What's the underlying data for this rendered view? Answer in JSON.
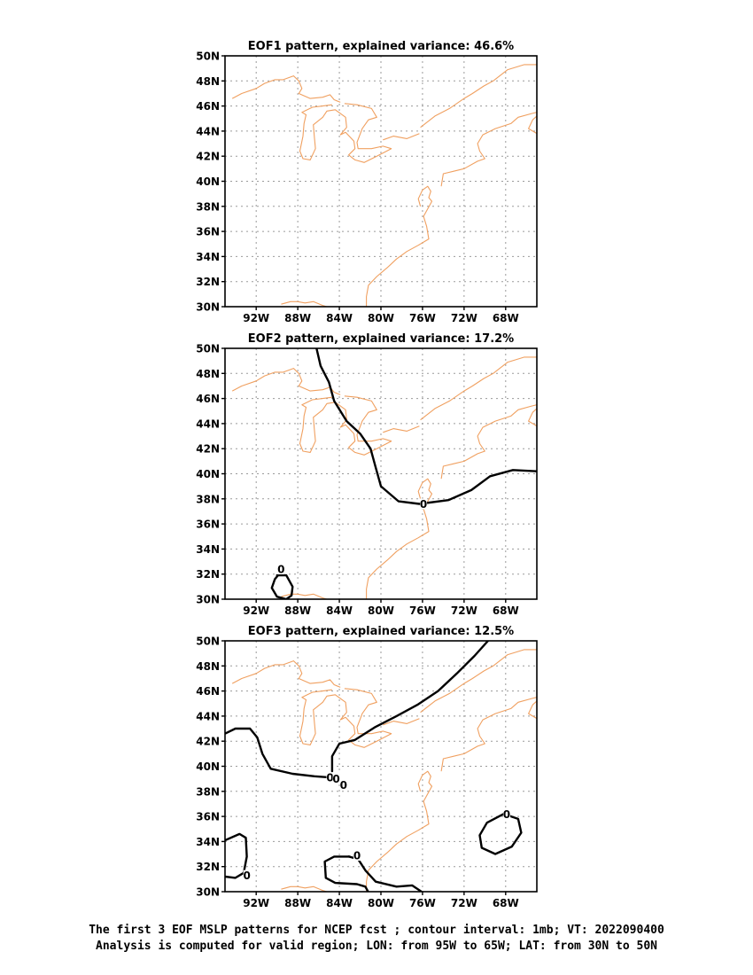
{
  "colors": {
    "coast": "#f0a060",
    "contour": "#000000",
    "grid": "#9a9a9a",
    "frame": "#000000"
  },
  "map": {
    "projection": "lat-lon",
    "lon_range": [
      -95,
      -65
    ],
    "lat_range": [
      30,
      50
    ],
    "grid": "dotted",
    "lon_ticks": [
      {
        "value": -92,
        "label": "92W"
      },
      {
        "value": -88,
        "label": "88W"
      },
      {
        "value": -84,
        "label": "84W"
      },
      {
        "value": -80,
        "label": "80W"
      },
      {
        "value": -76,
        "label": "76W"
      },
      {
        "value": -72,
        "label": "72W"
      },
      {
        "value": -68,
        "label": "68W"
      }
    ],
    "lat_ticks": [
      {
        "value": 50,
        "label": "50N"
      },
      {
        "value": 48,
        "label": "48N"
      },
      {
        "value": 46,
        "label": "46N"
      },
      {
        "value": 44,
        "label": "44N"
      },
      {
        "value": 42,
        "label": "42N"
      },
      {
        "value": 40,
        "label": "40N"
      },
      {
        "value": 38,
        "label": "38N"
      },
      {
        "value": 36,
        "label": "36N"
      },
      {
        "value": 34,
        "label": "34N"
      },
      {
        "value": 32,
        "label": "32N"
      },
      {
        "value": 30,
        "label": "30N"
      }
    ]
  },
  "coastlines": [
    [
      [
        -94.3,
        46.6
      ],
      [
        -93.4,
        47.0
      ],
      [
        -92.0,
        47.4
      ],
      [
        -91.2,
        47.8
      ],
      [
        -90.2,
        48.1
      ],
      [
        -89.4,
        48.1
      ],
      [
        -88.4,
        48.4
      ],
      [
        -87.9,
        48.0
      ],
      [
        -87.6,
        47.4
      ],
      [
        -87.9,
        47.0
      ],
      [
        -86.8,
        46.6
      ],
      [
        -85.6,
        46.7
      ],
      [
        -84.9,
        46.9
      ],
      [
        -84.5,
        46.5
      ],
      [
        -83.9,
        46.3
      ]
    ],
    [
      [
        -84.7,
        46.1
      ],
      [
        -85.6,
        46.0
      ],
      [
        -86.6,
        45.9
      ],
      [
        -87.6,
        45.5
      ],
      [
        -87.2,
        45.3
      ],
      [
        -87.4,
        44.6
      ],
      [
        -87.5,
        43.6
      ],
      [
        -87.8,
        42.4
      ],
      [
        -87.5,
        41.8
      ],
      [
        -86.8,
        41.7
      ],
      [
        -86.3,
        42.6
      ],
      [
        -86.4,
        43.5
      ],
      [
        -86.5,
        44.5
      ],
      [
        -85.6,
        45.1
      ],
      [
        -85.2,
        45.6
      ],
      [
        -84.4,
        45.7
      ],
      [
        -83.4,
        45.1
      ],
      [
        -83.3,
        44.3
      ],
      [
        -83.9,
        43.7
      ],
      [
        -83.4,
        43.9
      ],
      [
        -82.6,
        43.2
      ],
      [
        -82.5,
        42.6
      ],
      [
        -83.1,
        42.1
      ],
      [
        -82.5,
        41.7
      ],
      [
        -81.6,
        41.5
      ],
      [
        -80.4,
        42.0
      ],
      [
        -79.0,
        42.6
      ],
      [
        -79.8,
        42.8
      ],
      [
        -80.9,
        42.6
      ],
      [
        -82.2,
        42.6
      ],
      [
        -82.3,
        43.1
      ],
      [
        -81.8,
        44.2
      ],
      [
        -81.2,
        44.9
      ],
      [
        -80.4,
        45.1
      ],
      [
        -80.9,
        45.8
      ],
      [
        -82.3,
        46.1
      ],
      [
        -83.5,
        46.2
      ]
    ],
    [
      [
        -79.8,
        43.3
      ],
      [
        -78.8,
        43.6
      ],
      [
        -77.5,
        43.4
      ],
      [
        -76.3,
        43.8
      ]
    ],
    [
      [
        -76.2,
        44.3
      ],
      [
        -74.8,
        45.2
      ],
      [
        -73.4,
        45.8
      ],
      [
        -72.0,
        46.6
      ],
      [
        -71.2,
        47.0
      ],
      [
        -70.1,
        47.6
      ],
      [
        -69.2,
        48.0
      ],
      [
        -67.8,
        48.9
      ],
      [
        -66.2,
        49.3
      ],
      [
        -65.0,
        49.3
      ]
    ],
    [
      [
        -74.2,
        39.6
      ],
      [
        -74.0,
        40.6
      ],
      [
        -73.0,
        40.8
      ],
      [
        -72.0,
        41.0
      ],
      [
        -70.7,
        41.6
      ],
      [
        -70.0,
        41.8
      ],
      [
        -70.5,
        42.4
      ],
      [
        -70.7,
        43.0
      ],
      [
        -70.2,
        43.7
      ],
      [
        -69.0,
        44.2
      ],
      [
        -67.5,
        44.6
      ],
      [
        -66.8,
        45.1
      ],
      [
        -65.5,
        45.4
      ],
      [
        -65.0,
        45.5
      ]
    ],
    [
      [
        -76.2,
        38.0
      ],
      [
        -76.4,
        38.6
      ],
      [
        -76.0,
        39.3
      ],
      [
        -75.5,
        39.6
      ],
      [
        -75.2,
        39.2
      ],
      [
        -75.4,
        38.7
      ],
      [
        -75.1,
        38.4
      ],
      [
        -75.5,
        37.8
      ],
      [
        -75.9,
        37.2
      ],
      [
        -75.6,
        36.4
      ],
      [
        -75.4,
        35.4
      ],
      [
        -76.4,
        34.9
      ],
      [
        -77.5,
        34.4
      ],
      [
        -78.5,
        33.8
      ],
      [
        -79.4,
        33.1
      ],
      [
        -80.4,
        32.4
      ],
      [
        -81.2,
        31.7
      ],
      [
        -81.4,
        30.8
      ],
      [
        -81.4,
        30.0
      ]
    ],
    [
      [
        -89.6,
        30.2
      ],
      [
        -88.7,
        30.4
      ],
      [
        -88.0,
        30.4
      ],
      [
        -87.3,
        30.3
      ],
      [
        -86.5,
        30.4
      ],
      [
        -85.6,
        30.1
      ],
      [
        -85.2,
        30.0
      ]
    ],
    [
      [
        -65.0,
        43.8
      ],
      [
        -65.8,
        44.2
      ],
      [
        -65.4,
        44.9
      ],
      [
        -65.0,
        45.2
      ]
    ]
  ],
  "panels": [
    {
      "title": "EOF1 pattern, explained variance: 46.6%",
      "contours": [],
      "labels": []
    },
    {
      "title": "EOF2 pattern, explained variance: 17.2%",
      "contours": [
        [
          [
            -86.2,
            50.0
          ],
          [
            -85.8,
            48.6
          ],
          [
            -85.0,
            47.3
          ],
          [
            -84.5,
            45.8
          ],
          [
            -83.3,
            44.2
          ],
          [
            -82.0,
            43.2
          ],
          [
            -81.0,
            42.0
          ],
          [
            -80.5,
            40.5
          ],
          [
            -80.0,
            39.0
          ],
          [
            -78.3,
            37.8
          ],
          [
            -76.3,
            37.6
          ],
          [
            -73.5,
            37.9
          ],
          [
            -71.3,
            38.7
          ],
          [
            -69.5,
            39.8
          ],
          [
            -67.3,
            40.3
          ],
          [
            -65.0,
            40.2
          ]
        ],
        [
          [
            -90.0,
            31.9
          ],
          [
            -89.1,
            31.9
          ],
          [
            -88.5,
            31.0
          ],
          [
            -88.6,
            30.3
          ],
          [
            -89.1,
            30.0
          ],
          [
            -90.0,
            30.2
          ],
          [
            -90.5,
            30.9
          ],
          [
            -90.2,
            31.6
          ],
          [
            -89.6,
            32.2
          ]
        ]
      ],
      "labels": [
        {
          "text": "0",
          "lon": -75.9,
          "lat": 37.6
        },
        {
          "text": "0",
          "lon": -89.6,
          "lat": 32.4
        }
      ]
    },
    {
      "title": "EOF3 pattern, explained variance: 12.5%",
      "contours": [
        [
          [
            -95.0,
            42.6
          ],
          [
            -94.0,
            43.0
          ],
          [
            -92.6,
            43.0
          ],
          [
            -91.9,
            42.3
          ],
          [
            -91.4,
            41.0
          ],
          [
            -90.6,
            39.8
          ],
          [
            -88.5,
            39.4
          ],
          [
            -86.4,
            39.2
          ],
          [
            -84.8,
            39.1
          ]
        ],
        [
          [
            -84.7,
            39.6
          ],
          [
            -84.7,
            40.8
          ],
          [
            -84.0,
            41.8
          ],
          [
            -82.5,
            42.1
          ],
          [
            -80.6,
            43.1
          ],
          [
            -78.5,
            44.0
          ],
          [
            -76.5,
            44.9
          ],
          [
            -74.5,
            46.0
          ],
          [
            -72.7,
            47.4
          ],
          [
            -71.0,
            48.8
          ],
          [
            -69.7,
            50.0
          ]
        ],
        [
          [
            -95.0,
            34.1
          ],
          [
            -93.6,
            34.6
          ],
          [
            -93.0,
            34.3
          ],
          [
            -92.9,
            32.8
          ],
          [
            -93.2,
            31.5
          ],
          [
            -94.0,
            31.1
          ],
          [
            -95.0,
            31.2
          ]
        ],
        [
          [
            -83.0,
            32.8
          ],
          [
            -84.5,
            32.8
          ],
          [
            -85.4,
            32.4
          ],
          [
            -85.3,
            31.1
          ],
          [
            -84.4,
            30.7
          ],
          [
            -82.3,
            30.6
          ],
          [
            -81.5,
            30.4
          ],
          [
            -81.2,
            29.95
          ]
        ],
        [
          [
            -83.1,
            32.8
          ],
          [
            -82.2,
            32.6
          ],
          [
            -81.5,
            31.7
          ],
          [
            -80.5,
            30.8
          ],
          [
            -78.5,
            30.4
          ],
          [
            -77.0,
            30.5
          ],
          [
            -76.0,
            29.95
          ]
        ],
        [
          [
            -68.2,
            36.2
          ],
          [
            -66.8,
            35.8
          ],
          [
            -66.5,
            34.7
          ],
          [
            -67.4,
            33.6
          ],
          [
            -69.0,
            33.0
          ],
          [
            -70.3,
            33.5
          ],
          [
            -70.5,
            34.5
          ],
          [
            -69.8,
            35.5
          ],
          [
            -68.2,
            36.2
          ]
        ]
      ],
      "labels": [
        {
          "text": "0",
          "lon": -84.9,
          "lat": 39.1
        },
        {
          "text": "0",
          "lon": -84.3,
          "lat": 39.0
        },
        {
          "text": "0",
          "lon": -83.6,
          "lat": 38.5
        },
        {
          "text": "0",
          "lon": -82.3,
          "lat": 32.9
        },
        {
          "text": "0",
          "lon": -92.9,
          "lat": 31.3
        },
        {
          "text": "0",
          "lon": -67.9,
          "lat": 36.2
        }
      ]
    }
  ],
  "caption": {
    "line1": "The first 3 EOF MSLP patterns for NCEP fcst ; contour interval: 1mb; VT: 2022090400",
    "line2": "Analysis is computed for valid region; LON: from 95W to 65W; LAT: from 30N to 50N"
  }
}
